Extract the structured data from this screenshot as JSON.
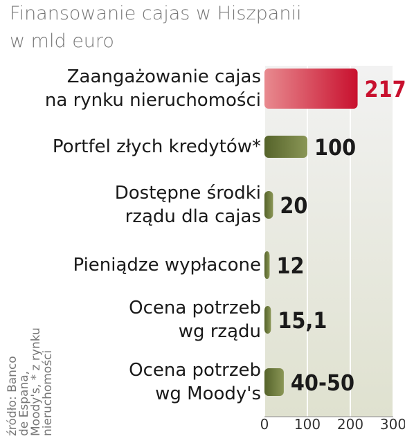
{
  "chart_data": {
    "type": "bar",
    "orientation": "horizontal",
    "title": "Finansowanie cajas w Hiszpanii",
    "subtitle": "w mld euro",
    "categories": [
      "Zaangażowanie cajas\nna rynku nieruchomości",
      "Portfel złych kredytów*",
      "Dostępne środki\nrządu dla cajas",
      "Pieniądze wypłacone",
      "Ocena potrzeb\nwg rządu",
      "Ocena potrzeb\nwg Moody's"
    ],
    "values": [
      217,
      100,
      20,
      12,
      15.1,
      45
    ],
    "value_labels": [
      "217",
      "100",
      "20",
      "12",
      "15,1",
      "40-50"
    ],
    "colors": [
      "#d42a3c",
      "#6b7a3a",
      "#6b7a3a",
      "#6b7a3a",
      "#6b7a3a",
      "#6b7a3a"
    ],
    "label_colors": [
      "#c8102e",
      "#1a1a1a",
      "#1a1a1a",
      "#1a1a1a",
      "#1a1a1a",
      "#1a1a1a"
    ],
    "xlim": [
      0,
      300
    ],
    "xticks": [
      0,
      100,
      200,
      300
    ],
    "source": "źródło: Banco\nde Espana,\nMoody's, * z rynku\nnieruchomości"
  }
}
